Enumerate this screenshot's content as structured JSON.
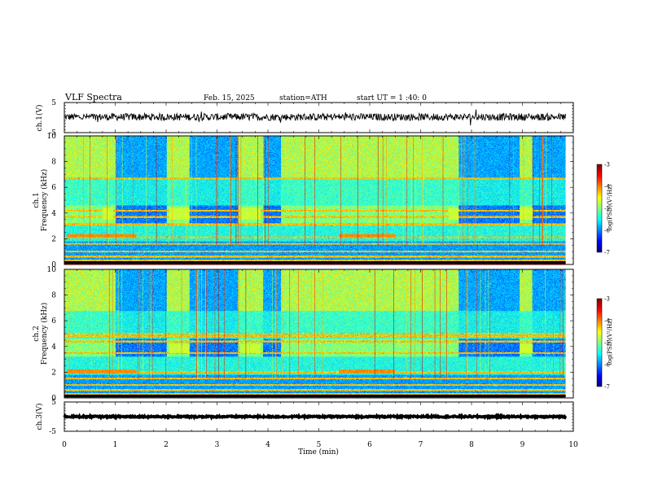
{
  "header": {
    "title": "VLF  Spectra",
    "date": "Feb. 15, 2025",
    "station": "station=ATH",
    "start_ut": "start  UT  =   1 :40: 0"
  },
  "chart_data": [
    {
      "id": "ch1-voltage",
      "type": "line",
      "ylabel": "ch.1(V)",
      "ylim": [
        -5,
        5
      ],
      "y_tick_labels": [
        "5",
        "-5"
      ],
      "xlim": [
        0,
        10
      ],
      "series": [
        {
          "mean": 0.2,
          "noise_amplitude": 1.2,
          "color": "#000000"
        }
      ]
    },
    {
      "id": "ch1-spectrogram",
      "type": "heatmap",
      "ylabel": "ch.1\nFrequency (kHz)",
      "ylim": [
        0,
        10
      ],
      "y_tick_labels": [
        "0",
        "2",
        "4",
        "6",
        "8",
        "10"
      ],
      "xlim": [
        0,
        10
      ],
      "colorbar": {
        "label": "log(PSD)(V²/Hz)",
        "range": [
          -7,
          -3
        ],
        "tick_labels": [
          "-3",
          "-4",
          "-5",
          "-6",
          "-7"
        ]
      },
      "features": {
        "quiet_intervals_min": [
          [
            1.0,
            2.0
          ],
          [
            2.45,
            3.4
          ],
          [
            3.9,
            4.25
          ],
          [
            7.75,
            8.95
          ],
          [
            9.2,
            9.85
          ]
        ],
        "hum_bands_khz": [
          0.3,
          0.6,
          1.0,
          1.6,
          2.1,
          3.1,
          3.7,
          4.2,
          6.7
        ],
        "tone_bursts": [
          {
            "t": [
              0.75,
              0.95
            ],
            "f": [
              3.5,
              4.4
            ]
          },
          {
            "t": [
              2.05,
              2.45
            ],
            "f": [
              3.5,
              4.4
            ]
          },
          {
            "t": [
              3.45,
              3.85
            ],
            "f": [
              3.5,
              4.4
            ]
          },
          {
            "t": [
              7.55,
              7.75
            ],
            "f": [
              3.5,
              4.4
            ]
          },
          {
            "t": [
              8.95,
              9.2
            ],
            "f": [
              3.5,
              4.4
            ]
          }
        ],
        "seg_band": [
          {
            "t": [
              0.05,
              1.4
            ],
            "f": [
              2.1,
              2.35
            ]
          },
          {
            "t": [
              5.4,
              6.5
            ],
            "f": [
              2.1,
              2.35
            ]
          }
        ]
      }
    },
    {
      "id": "ch2-spectrogram",
      "type": "heatmap",
      "ylabel": "ch.2\nFrequency (kHz)",
      "ylim": [
        0,
        10
      ],
      "y_tick_labels": [
        "0",
        "2",
        "4",
        "6",
        "8",
        "10"
      ],
      "xlim": [
        0,
        10
      ],
      "colorbar": {
        "label": "log(PSD)(V²/Hz)",
        "range": [
          -7,
          -3
        ],
        "tick_labels": [
          "-3",
          "-4",
          "-5",
          "-6",
          "-7"
        ]
      },
      "features": {
        "quiet_intervals_min": [
          [
            1.0,
            2.0
          ],
          [
            2.45,
            3.4
          ],
          [
            3.9,
            4.25
          ],
          [
            7.75,
            8.95
          ],
          [
            9.2,
            9.85
          ]
        ],
        "hum_bands_khz": [
          0.3,
          0.6,
          1.0,
          1.5,
          2.0,
          3.5,
          4.4,
          4.8,
          5.0
        ],
        "tone_bursts": [
          {
            "t": [
              2.05,
              2.45
            ],
            "f": [
              3.5,
              4.2
            ]
          },
          {
            "t": [
              3.45,
              3.85
            ],
            "f": [
              3.5,
              4.2
            ]
          },
          {
            "t": [
              8.95,
              9.2
            ],
            "f": [
              3.5,
              4.2
            ]
          }
        ],
        "seg_band": [
          {
            "t": [
              0.05,
              1.4
            ],
            "f": [
              1.9,
              2.2
            ]
          },
          {
            "t": [
              5.4,
              6.5
            ],
            "f": [
              1.9,
              2.2
            ]
          }
        ]
      }
    },
    {
      "id": "ch3-voltage",
      "type": "line",
      "ylabel": "ch.3(V)",
      "ylim": [
        -5,
        5
      ],
      "y_tick_labels": [
        "5",
        "-5"
      ],
      "xlim": [
        0,
        10
      ],
      "series": [
        {
          "mean": 0.0,
          "noise_amplitude": 0.25,
          "color": "#000000"
        }
      ]
    }
  ],
  "x_axis": {
    "label": "Time  (min)",
    "tick_labels": [
      "0",
      "1",
      "2",
      "3",
      "4",
      "5",
      "6",
      "7",
      "8",
      "9",
      "10"
    ],
    "range": [
      0,
      10
    ]
  }
}
